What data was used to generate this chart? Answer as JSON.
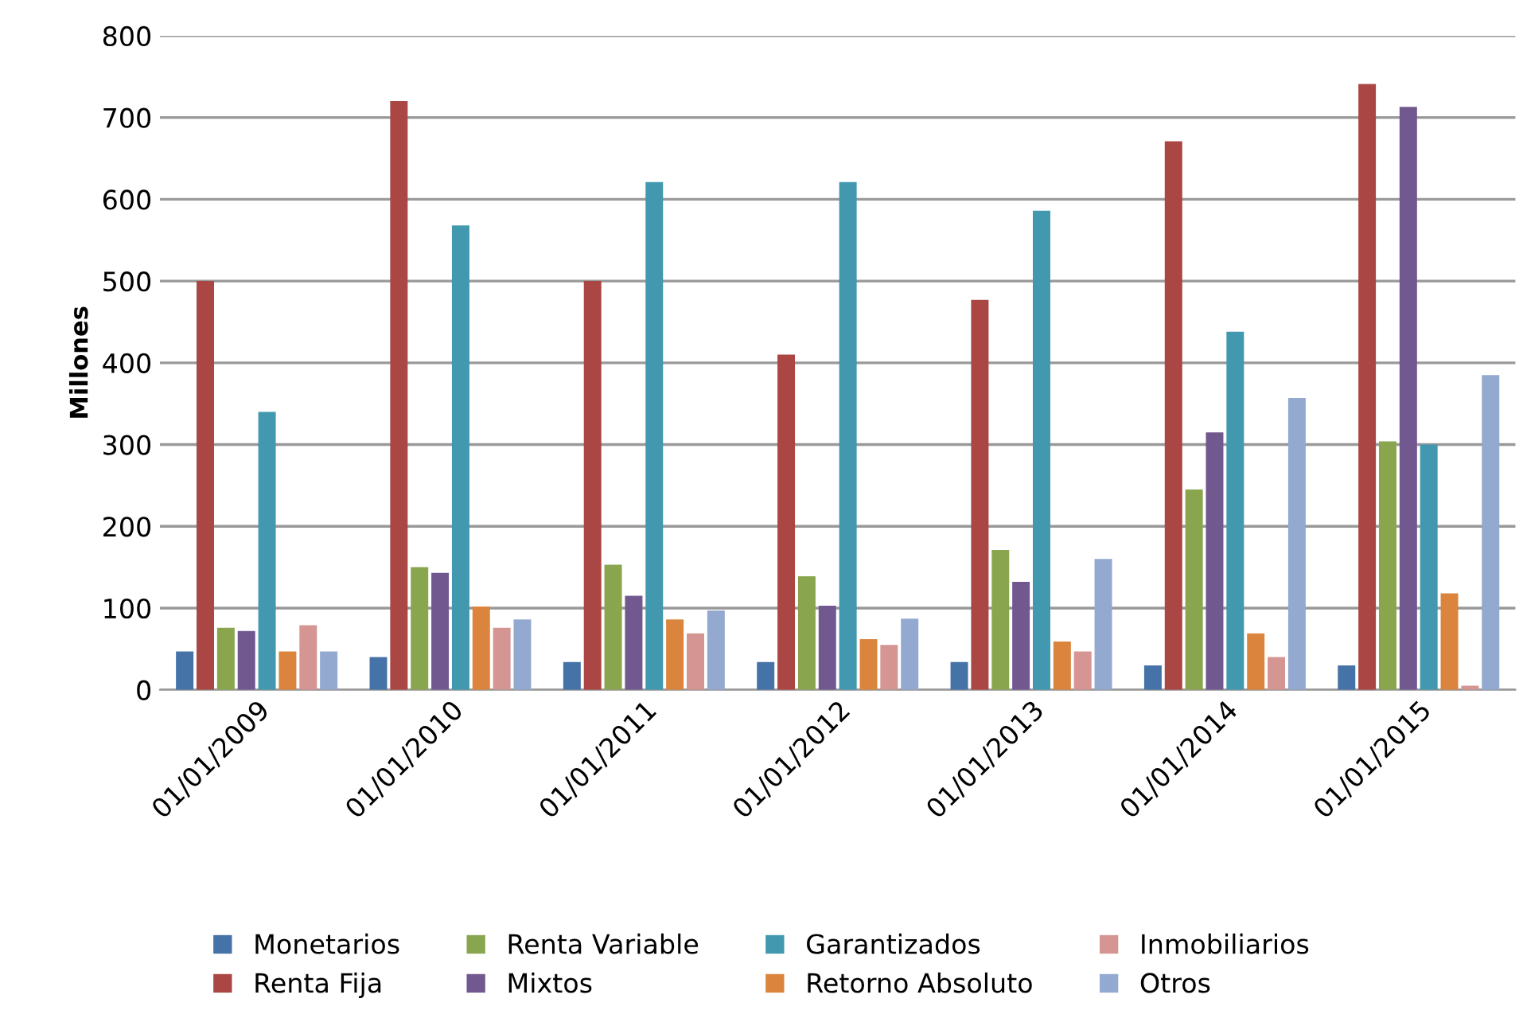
{
  "chart_data": {
    "type": "bar",
    "ylabel": "Millones",
    "categories": [
      "01/01/2009",
      "01/01/2010",
      "01/01/2011",
      "01/01/2012",
      "01/01/2013",
      "01/01/2014",
      "01/01/2015"
    ],
    "series": [
      {
        "name": "Monetarios",
        "color": "#4572a7",
        "values": [
          47,
          40,
          34,
          34,
          34,
          30,
          30
        ]
      },
      {
        "name": "Renta Fija",
        "color": "#aa4643",
        "values": [
          500,
          720,
          500,
          410,
          477,
          671,
          741
        ]
      },
      {
        "name": "Renta Variable",
        "color": "#89a54e",
        "values": [
          76,
          150,
          153,
          139,
          171,
          245,
          304
        ]
      },
      {
        "name": "Mixtos",
        "color": "#71588f",
        "values": [
          72,
          143,
          115,
          103,
          132,
          315,
          713
        ]
      },
      {
        "name": "Garantizados",
        "color": "#4198af",
        "values": [
          340,
          568,
          621,
          621,
          586,
          438,
          300
        ]
      },
      {
        "name": "Retorno Absoluto",
        "color": "#db843d",
        "values": [
          47,
          102,
          86,
          62,
          59,
          69,
          118
        ]
      },
      {
        "name": "Inmobiliarios",
        "color": "#d59592",
        "values": [
          79,
          76,
          69,
          55,
          47,
          40,
          5
        ]
      },
      {
        "name": "Otros",
        "color": "#93a9cf",
        "values": [
          47,
          86,
          97,
          87,
          160,
          357,
          385
        ]
      }
    ],
    "ylim": [
      0,
      800
    ],
    "yticks": [
      0,
      100,
      200,
      300,
      400,
      500,
      600,
      700,
      800
    ],
    "grid": "y",
    "legend": "bottom"
  }
}
